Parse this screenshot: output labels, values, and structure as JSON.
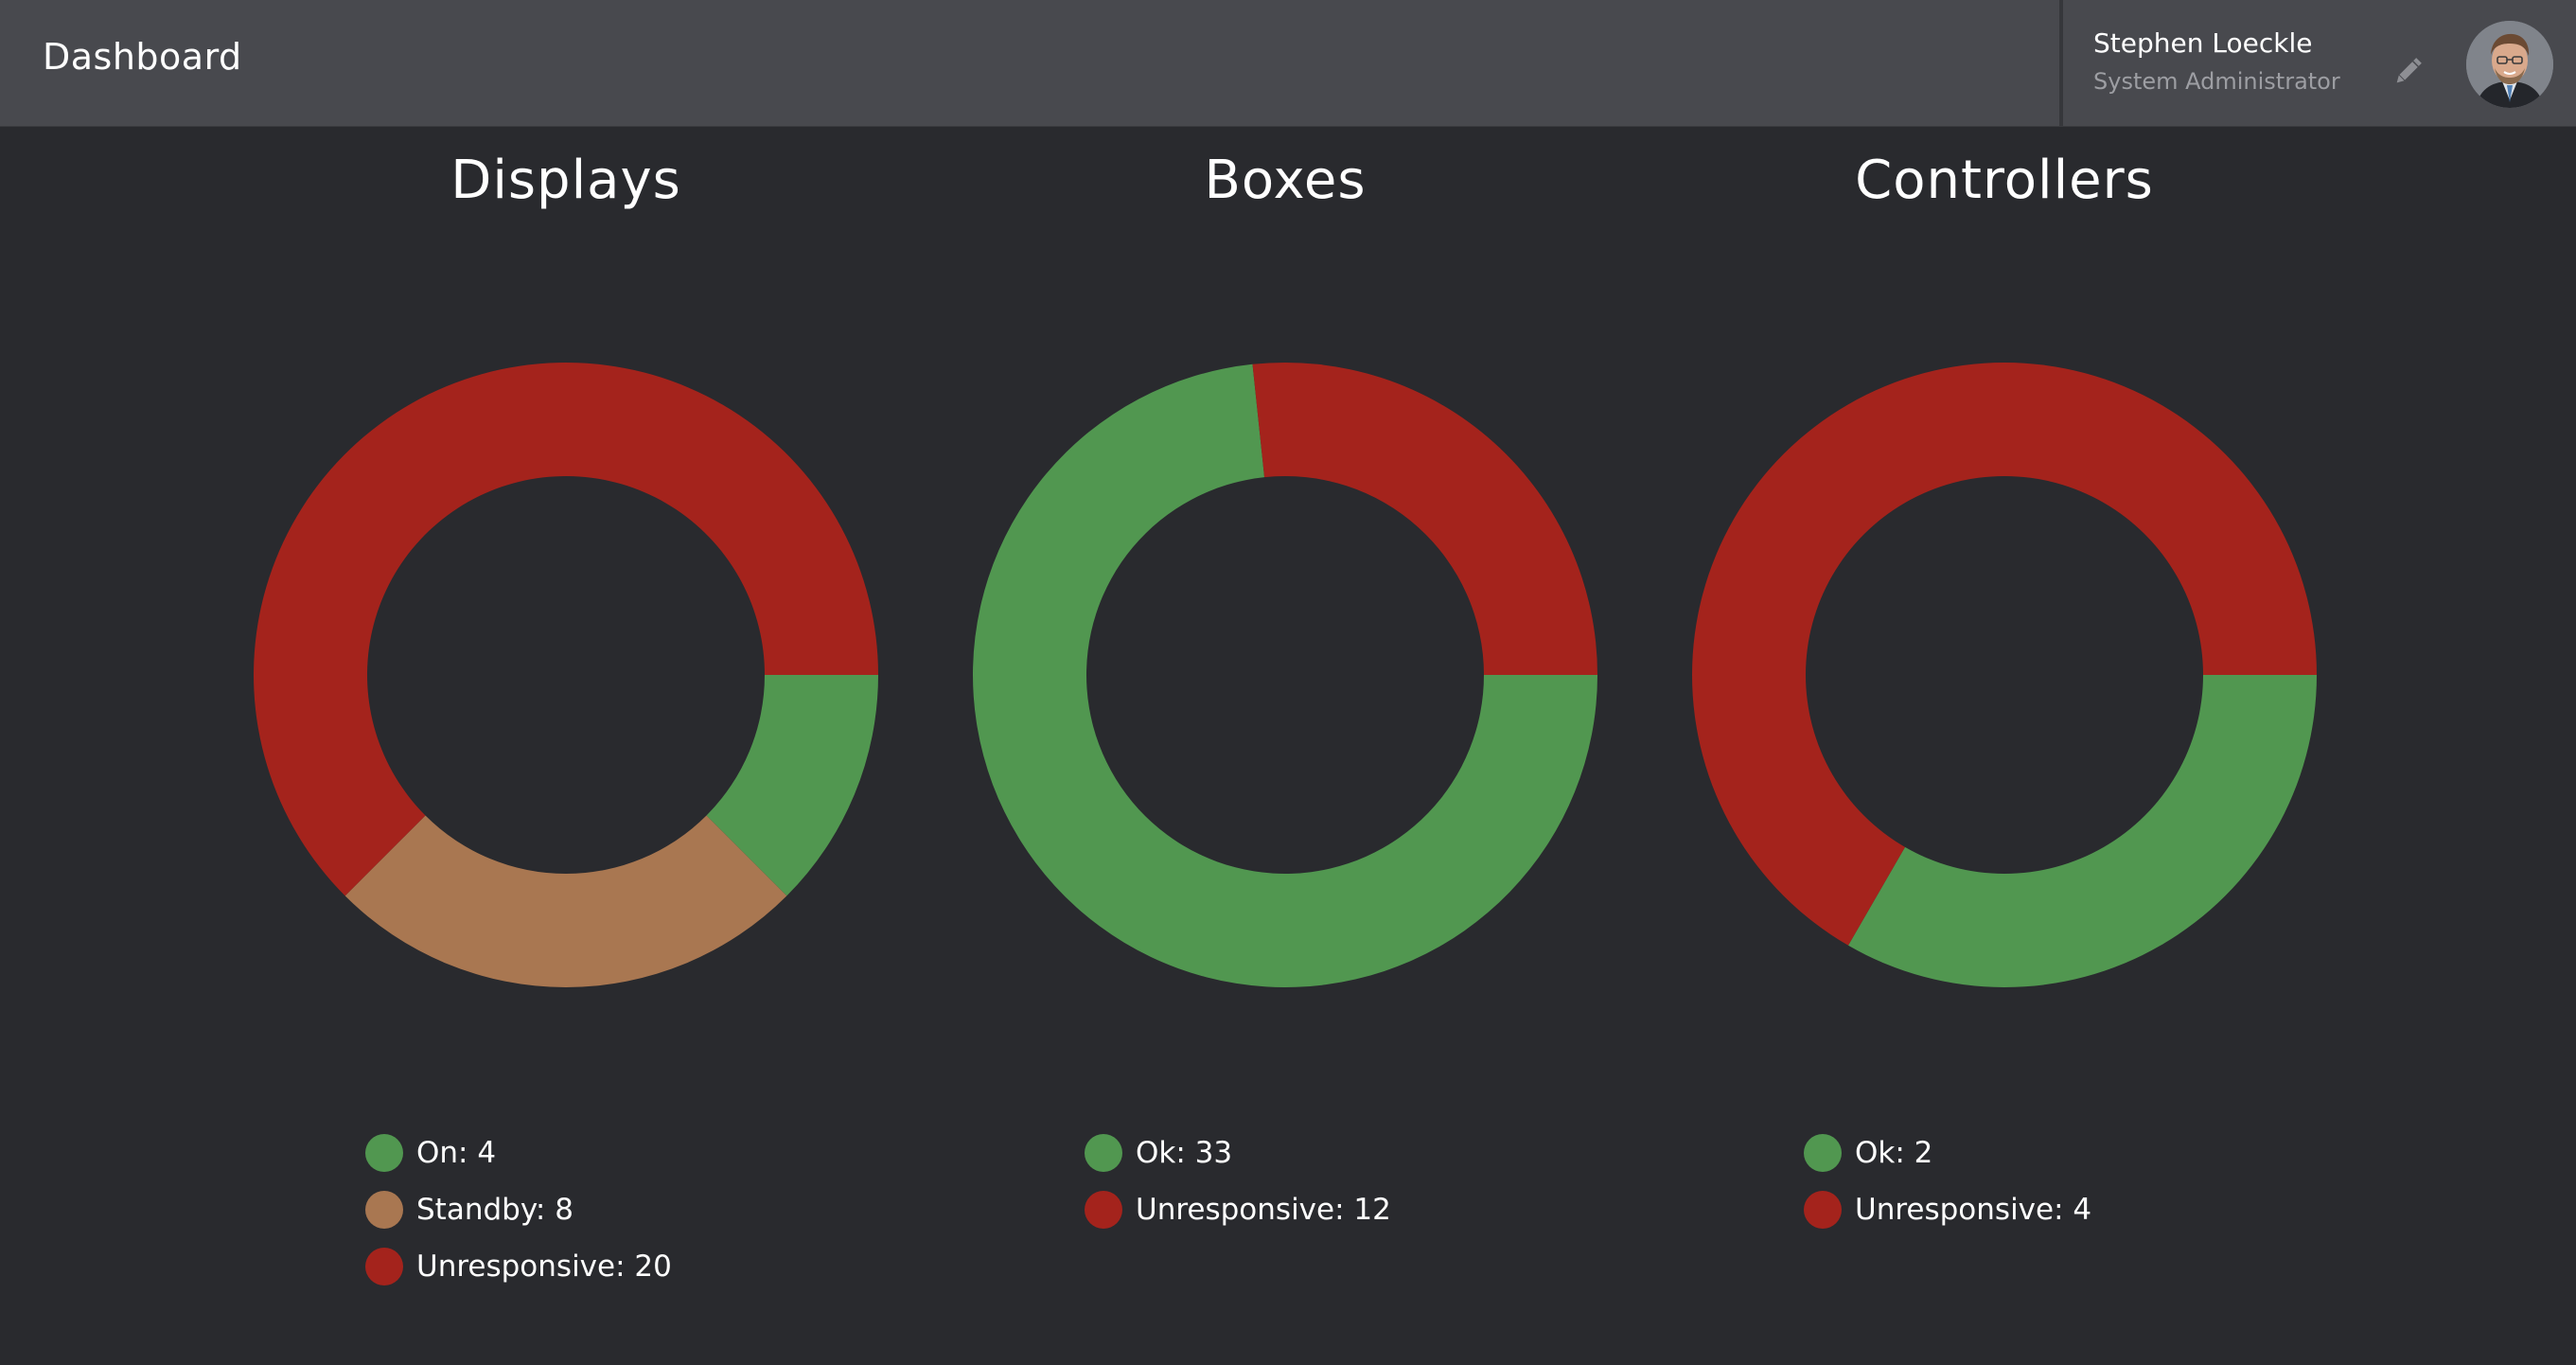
{
  "header": {
    "title": "Dashboard",
    "user_name": "Stephen Loeckle",
    "user_role": "System Administrator"
  },
  "icons": {
    "edit": "pencil-icon",
    "avatar": "user-photo"
  },
  "colors": {
    "background": "#292a2e",
    "topbar": "#48494e",
    "ok": "#519750",
    "standby": "#a97751",
    "unresponsive": "#a4231c"
  },
  "panels": [
    {
      "title": "Displays",
      "legend": [
        {
          "label": "On: 4"
        },
        {
          "label": "Standby: 8"
        },
        {
          "label": "Unresponsive: 20"
        }
      ]
    },
    {
      "title": "Boxes",
      "legend": [
        {
          "label": "Ok: 33"
        },
        {
          "label": "Unresponsive: 12"
        }
      ]
    },
    {
      "title": "Controllers",
      "legend": [
        {
          "label": "Ok: 2"
        },
        {
          "label": "Unresponsive: 4"
        }
      ]
    }
  ],
  "chart_data": [
    {
      "type": "pie",
      "variant": "donut",
      "title": "Displays",
      "categories": [
        "On",
        "Standby",
        "Unresponsive"
      ],
      "values": [
        4,
        8,
        20
      ],
      "colors": [
        "#519750",
        "#a97751",
        "#a4231c"
      ]
    },
    {
      "type": "pie",
      "variant": "donut",
      "title": "Boxes",
      "categories": [
        "Ok",
        "Unresponsive"
      ],
      "values": [
        33,
        12
      ],
      "colors": [
        "#519750",
        "#a4231c"
      ]
    },
    {
      "type": "pie",
      "variant": "donut",
      "title": "Controllers",
      "categories": [
        "Ok",
        "Unresponsive"
      ],
      "values": [
        2,
        4
      ],
      "colors": [
        "#519750",
        "#a4231c"
      ]
    }
  ]
}
